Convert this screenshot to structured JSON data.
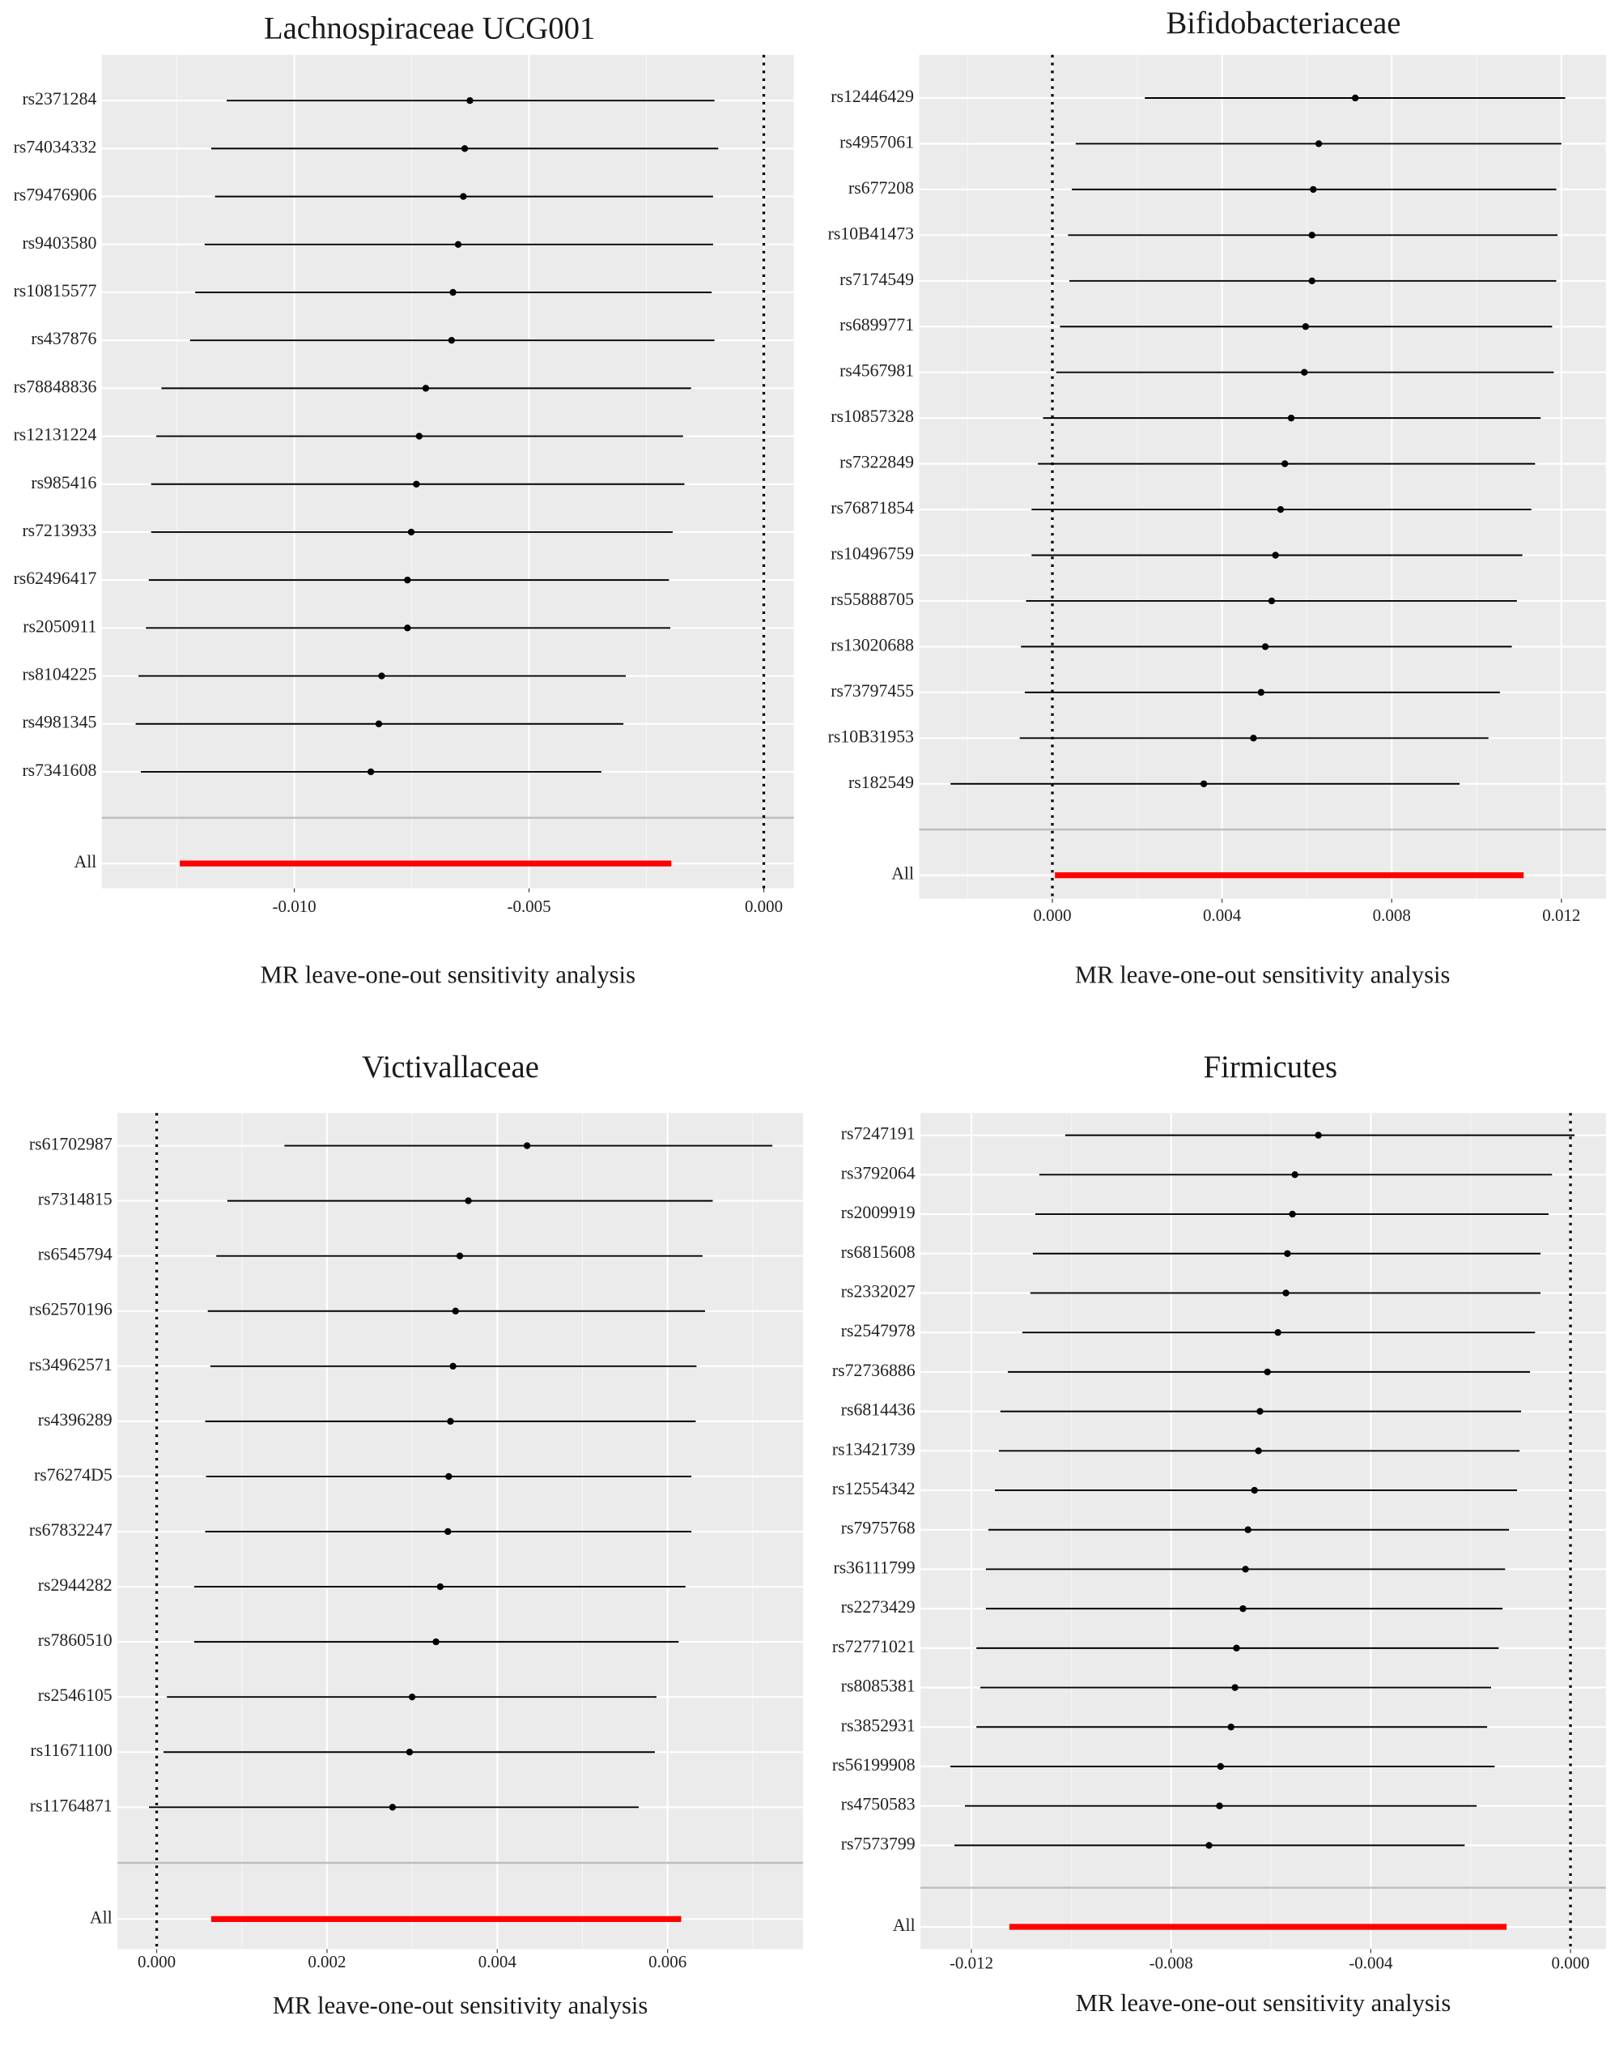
{
  "chart_data": [
    {
      "type": "forest",
      "title": "Lachnospiraceae UCG001",
      "xlabel": "MR leave-one-out sensitivity analysis",
      "categories": [
        "rs2371284",
        "rs74034332",
        "rs79476906",
        "rs9403580",
        "rs10815577",
        "rs437876",
        "rs78848836",
        "rs12131224",
        "rs985416",
        "rs7213933",
        "rs62496417",
        "rs2050911",
        "rs8104225",
        "rs4981345",
        "rs7341608"
      ],
      "values": [
        -0.00626,
        -0.00637,
        -0.0064,
        -0.00651,
        -0.00662,
        -0.00665,
        -0.0072,
        -0.00734,
        -0.0074,
        -0.00751,
        -0.00759,
        -0.00759,
        -0.00814,
        -0.0082,
        -0.00837
      ],
      "lower": [
        -0.01144,
        -0.01177,
        -0.01169,
        -0.01191,
        -0.01211,
        -0.01222,
        -0.01283,
        -0.01294,
        -0.01305,
        -0.01305,
        -0.0131,
        -0.01316,
        -0.01332,
        -0.01338,
        -0.01327
      ],
      "upper": [
        -0.00105,
        -0.00097,
        -0.00108,
        -0.00108,
        -0.00111,
        -0.00105,
        -0.00155,
        -0.00172,
        -0.00169,
        -0.00194,
        -0.00202,
        -0.00199,
        -0.00294,
        -0.00299,
        -0.00346
      ],
      "summary": {
        "label": "All",
        "value": -0.0072,
        "lower": -0.01244,
        "upper": -0.00197
      },
      "xlim": [
        -0.0141,
        0.00064
      ],
      "xticks": [
        {
          "value": -0.01,
          "label": "-0.010"
        },
        -0.005,
        {
          "value": 0,
          "label": "0.000"
        }
      ],
      "grid": true,
      "color": "#000000",
      "summary_color": "#ff0000"
    },
    {
      "type": "forest",
      "title": "Bifidobacteriaceae",
      "xlabel": "MR leave-one-out sensitivity analysis",
      "categories": [
        "rs12446429",
        "rs4957061",
        "rs677208",
        "rs10B41473",
        "rs7174549",
        "rs6899771",
        "rs4567981",
        "rs10857328",
        "rs7322849",
        "rs76871854",
        "rs10496759",
        "rs55888705",
        "rs13020688",
        "rs73797455",
        "rs10B31953",
        "rs182549"
      ],
      "values": [
        0.00714,
        0.00628,
        0.00615,
        0.00612,
        0.00612,
        0.00597,
        0.00594,
        0.00563,
        0.00548,
        0.00538,
        0.00526,
        0.00517,
        0.00502,
        0.00492,
        0.00474,
        0.00357
      ],
      "lower": [
        0.00218,
        0.00055,
        0.00046,
        0.00037,
        0.0004,
        0.00018,
        9e-05,
        -0.00022,
        -0.00034,
        -0.00049,
        -0.00049,
        -0.00062,
        -0.00074,
        -0.00065,
        -0.00077,
        -0.0024
      ],
      "upper": [
        0.01209,
        0.012,
        0.01188,
        0.01191,
        0.01188,
        0.01178,
        0.01182,
        0.01151,
        0.01138,
        0.01129,
        0.01108,
        0.01095,
        0.01083,
        0.01055,
        0.01028,
        0.0096
      ],
      "summary": {
        "label": "All",
        "value": 0.0056,
        "lower": 6e-05,
        "upper": 0.01111
      },
      "xlim": [
        -0.00314,
        0.01305
      ],
      "xticks": [
        {
          "value": 0,
          "label": "0.000"
        },
        0.004,
        0.008,
        0.012
      ],
      "grid": true,
      "color": "#000000",
      "summary_color": "#ff0000"
    },
    {
      "type": "forest",
      "title": "Victivallaceae",
      "xlabel": "MR leave-one-out sensitivity analysis",
      "categories": [
        "rs61702987",
        "rs7314815",
        "rs6545794",
        "rs62570196",
        "rs34962571",
        "rs4396289",
        "rs76274D5",
        "rs67832247",
        "rs2944282",
        "rs7860510",
        "rs2546105",
        "rs11671100",
        "rs11764871"
      ],
      "values": [
        0.00435,
        0.00366,
        0.00356,
        0.00351,
        0.00348,
        0.00345,
        0.00343,
        0.00342,
        0.00333,
        0.00328,
        0.003,
        0.00297,
        0.00277
      ],
      "lower": [
        0.0015,
        0.00083,
        0.0007,
        0.0006,
        0.00063,
        0.00057,
        0.00058,
        0.00057,
        0.00044,
        0.00044,
        0.00012,
        8e-05,
        -9e-05
      ],
      "upper": [
        0.00723,
        0.00653,
        0.00641,
        0.00644,
        0.00634,
        0.00633,
        0.00628,
        0.00628,
        0.00621,
        0.00613,
        0.00587,
        0.00585,
        0.00566
      ],
      "summary": {
        "label": "All",
        "value": 0.0034,
        "lower": 0.00064,
        "upper": 0.00616
      },
      "xlim": [
        -0.00046,
        0.00759
      ],
      "xticks": [
        {
          "value": 0,
          "label": "0.000"
        },
        0.002,
        0.004,
        0.006
      ],
      "grid": true,
      "color": "#000000",
      "summary_color": "#ff0000"
    },
    {
      "type": "forest",
      "title": "Firmicutes",
      "xlabel": "MR leave-one-out sensitivity analysis",
      "categories": [
        "rs7247191",
        "rs3792064",
        "rs2009919",
        "rs6815608",
        "rs2332027",
        "rs2547978",
        "rs72736886",
        "rs6814436",
        "rs13421739",
        "rs12554342",
        "rs7975768",
        "rs36111799",
        "rs2273429",
        "rs72771021",
        "rs8085381",
        "rs3852931",
        "rs56199908",
        "rs4750583",
        "rs7573799"
      ],
      "values": [
        -0.00505,
        -0.00552,
        -0.00557,
        -0.00567,
        -0.0057,
        -0.00586,
        -0.00607,
        -0.00622,
        -0.00625,
        -0.00633,
        -0.00646,
        -0.00651,
        -0.00656,
        -0.00669,
        -0.00672,
        -0.0068,
        -0.00701,
        -0.00703,
        -0.00724
      ],
      "lower": [
        -0.01012,
        -0.01064,
        -0.01072,
        -0.01077,
        -0.01082,
        -0.01098,
        -0.01127,
        -0.01142,
        -0.01145,
        -0.01153,
        -0.01166,
        -0.01171,
        -0.01171,
        -0.0119,
        -0.01182,
        -0.0119,
        -0.01242,
        -0.01213,
        -0.01234
      ],
      "upper": [
        8e-05,
        -0.00037,
        -0.00044,
        -0.0006,
        -0.0006,
        -0.00071,
        -0.00081,
        -0.00099,
        -0.00102,
        -0.00107,
        -0.00123,
        -0.00131,
        -0.00136,
        -0.00144,
        -0.00159,
        -0.00167,
        -0.00152,
        -0.00188,
        -0.00212
      ],
      "summary": {
        "label": "All",
        "value": -0.00627,
        "lower": -0.01124,
        "upper": -0.00128
      },
      "xlim": [
        -0.01302,
        0.00071
      ],
      "xticks": [
        -0.012,
        -0.008,
        -0.004,
        {
          "value": 0,
          "label": "0.000"
        }
      ],
      "grid": true,
      "color": "#000000",
      "summary_color": "#ff0000"
    }
  ]
}
